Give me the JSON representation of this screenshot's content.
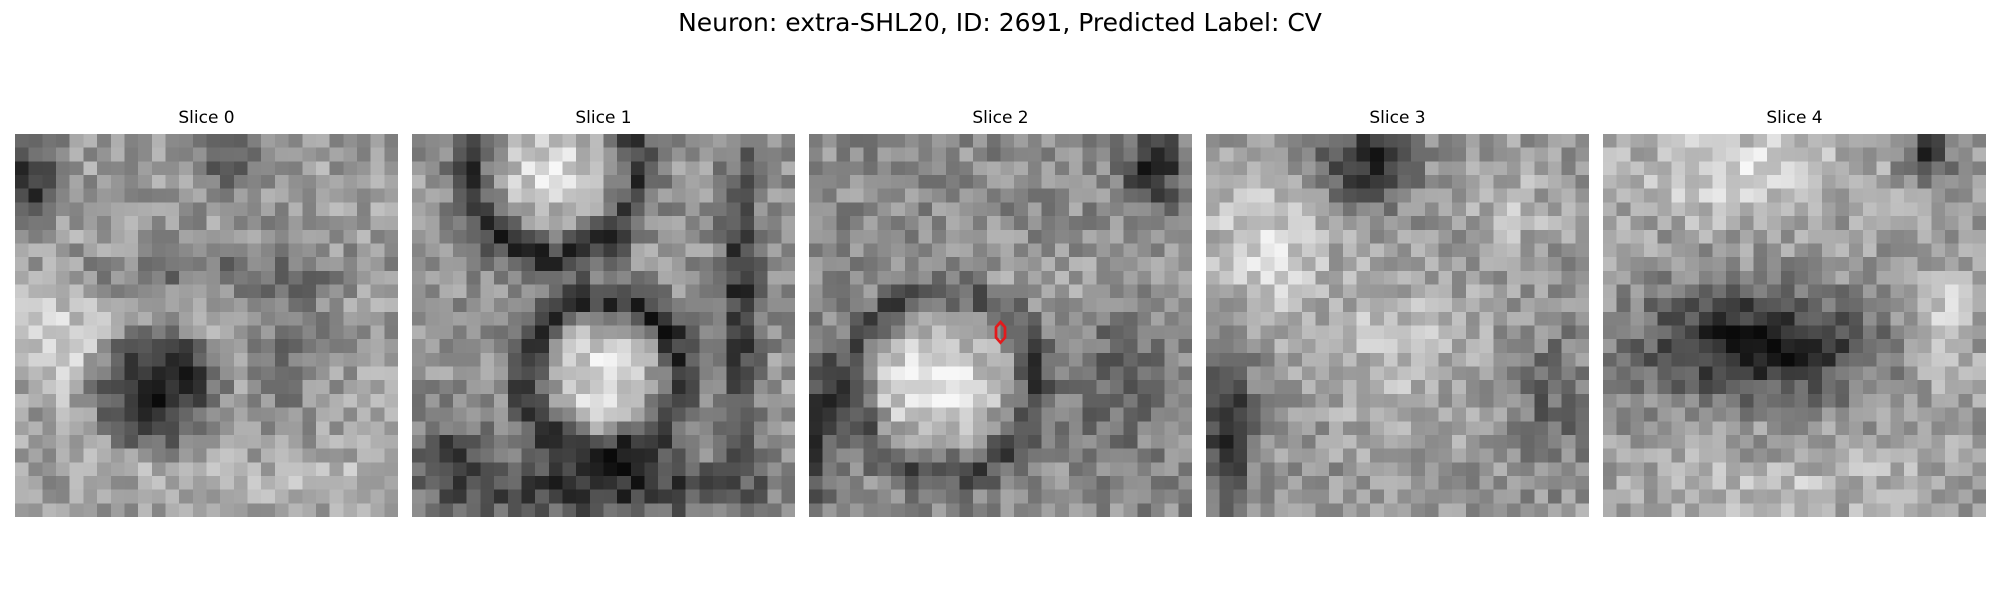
{
  "figure": {
    "title": "Neuron: extra-SHL20, ID: 2691, Predicted Label: CV"
  },
  "panels": [
    {
      "title": "Slice 0",
      "has_marker": false
    },
    {
      "title": "Slice 1",
      "has_marker": false
    },
    {
      "title": "Slice 2",
      "has_marker": true
    },
    {
      "title": "Slice 3",
      "has_marker": false
    },
    {
      "title": "Slice 4",
      "has_marker": false
    }
  ],
  "marker": {
    "color": "#e31a1c",
    "shape": "hexagon-outline"
  },
  "image": {
    "colormap": "gray",
    "grid_size": 28
  }
}
